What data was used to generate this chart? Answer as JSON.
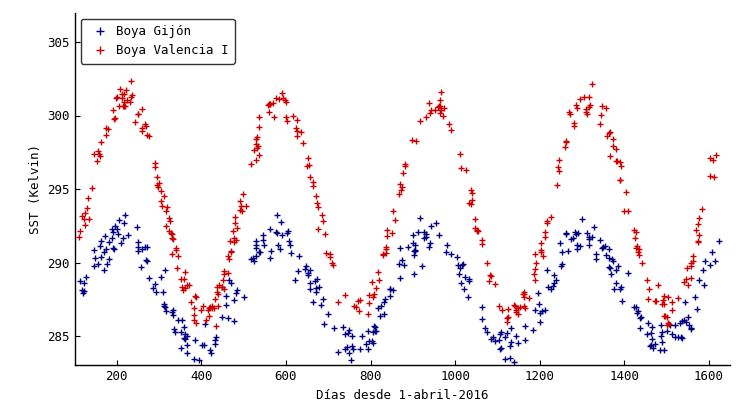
{
  "xlabel": "Días desde 1-abril-2016",
  "ylabel": "SST (Kelvin)",
  "xlim": [
    100,
    1650
  ],
  "ylim": [
    283,
    307
  ],
  "xticks": [
    200,
    400,
    600,
    800,
    1000,
    1200,
    1400,
    1600
  ],
  "yticks": [
    285,
    290,
    295,
    300,
    305
  ],
  "legend_gijon": "Boya Gijón",
  "legend_valencia": "Boya Valencia I",
  "color_gijon": "#000080",
  "color_valencia": "#cc0000",
  "period_days": 365,
  "gijon_base": 288.2,
  "gijon_amp": 3.8,
  "gijon_phase": 120,
  "valencia_base": 293.8,
  "valencia_amp": 7.2,
  "valencia_phase": 130,
  "noise_g": 0.7,
  "noise_v": 0.6,
  "n_gijon": 350,
  "n_valencia": 380,
  "x_start": 110,
  "x_end": 1625,
  "seed_gijon": 7,
  "seed_valencia": 13
}
